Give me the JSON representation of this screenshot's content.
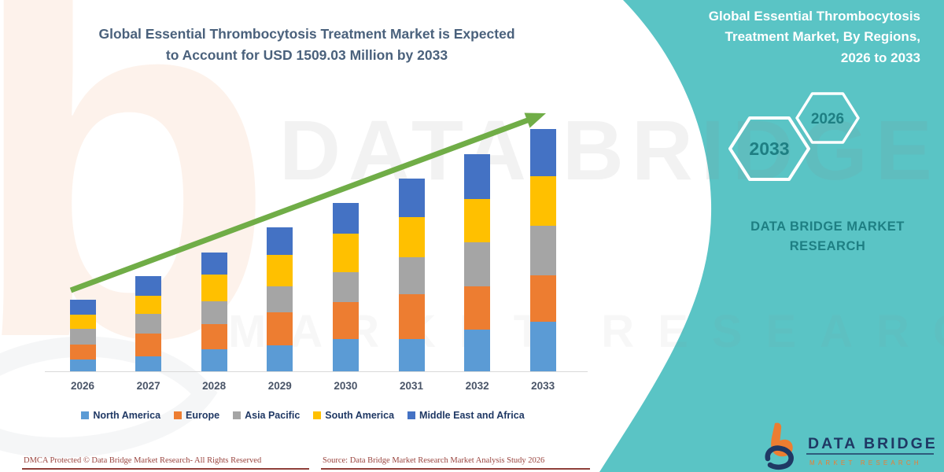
{
  "chart": {
    "title_line1": "Global Essential Thrombocytosis Treatment Market is Expected",
    "title_line2": "to Account for USD 1509.03 Million by 2033",
    "title_color": "#4A617C"
  },
  "chart_data": {
    "type": "bar",
    "stacked": true,
    "title": "Global Essential Thrombocytosis Treatment Market is Expected to Account for USD 1509.03 Million by 2033",
    "categories": [
      "2026",
      "2027",
      "2028",
      "2029",
      "2030",
      "2031",
      "2032",
      "2033"
    ],
    "unit": "USD Million (estimated from bar heights; 2033 total anchored at 1509.03)",
    "series": [
      {
        "name": "North America",
        "color": "#5B9BD5",
        "values": [
          78,
          98,
          142,
          166,
          205,
          205,
          264,
          313
        ]
      },
      {
        "name": "Europe",
        "color": "#ED7D31",
        "values": [
          93,
          142,
          156,
          205,
          230,
          278,
          269,
          288
        ]
      },
      {
        "name": "Asia Pacific",
        "color": "#A5A5A5",
        "values": [
          98,
          122,
          142,
          161,
          186,
          230,
          273,
          308
        ]
      },
      {
        "name": "South America",
        "color": "#FFC000",
        "values": [
          88,
          112,
          166,
          195,
          239,
          249,
          269,
          308
        ]
      },
      {
        "name": "Middle East and Africa",
        "color": "#4472C4",
        "values": [
          93,
          122,
          137,
          171,
          190,
          239,
          278,
          292.03
        ]
      }
    ],
    "totals": [
      450,
      596,
      743,
      898,
      1050,
      1201,
      1353,
      1509.03
    ],
    "trend_arrow_color": "#70AD47",
    "legend_position": "bottom",
    "grid": false,
    "y_axis_shown": false
  },
  "panel": {
    "background": "#5AC4C5",
    "title_line1": "Global Essential Thrombocytosis",
    "title_line2": "Treatment Market, By Regions,",
    "title_line3": "2026 to 2033",
    "hexagon_left": "2033",
    "hexagon_right": "2026",
    "hexagon_text_color": "#1E7F83",
    "brand_line1": "DATA BRIDGE MARKET",
    "brand_line2": "RESEARCH"
  },
  "logo": {
    "name": "DATA BRIDGE",
    "tagline": "MARKET RESEARCH",
    "navy": "#1F3864",
    "orange": "#ED7D31"
  },
  "watermarks": {
    "letter": "b",
    "big_text": "DATA BRIDGE",
    "sub_text": "MARKET RESEARCH"
  },
  "footer": {
    "left": "DMCA Protected © Data Bridge Market Research- All Rights Reserved",
    "right": "Source: Data Bridge Market Research Market Analysis Study 2026",
    "color": "#9A453F"
  }
}
